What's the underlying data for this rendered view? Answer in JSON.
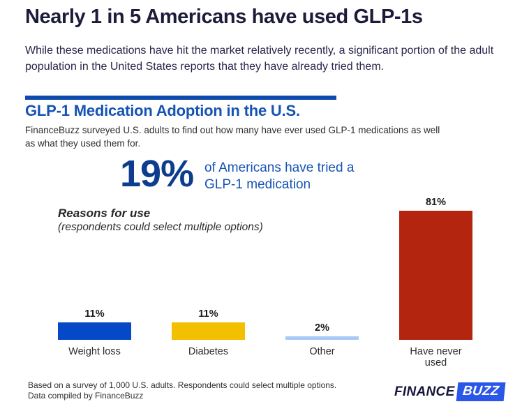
{
  "header": {
    "title": "Nearly 1 in 5 Americans have used GLP-1s",
    "subtitle_line1": "While these medications have hit the market relatively recently, a significant portion of the adult",
    "subtitle_line2": "population in the United States reports that they have already tried them."
  },
  "chart": {
    "title": "GLP-1 Medication Adoption in the U.S.",
    "description_line1": "FinanceBuzz surveyed U.S. adults to find out how many have ever used GLP-1 medications as well",
    "description_line2": "as what they used them for."
  },
  "stat": {
    "value": "19%",
    "description_line1": "of Americans have tried a",
    "description_line2": "GLP-1 medication"
  },
  "reasons": {
    "title": "Reasons for use",
    "note": "(respondents could select multiple options)"
  },
  "chart_data": {
    "type": "bar",
    "title": "GLP-1 Medication Adoption in the U.S.",
    "categories": [
      "Weight loss",
      "Diabetes",
      "Other",
      "Have never used"
    ],
    "values": [
      11,
      11,
      2,
      81
    ],
    "value_labels": [
      "11%",
      "11%",
      "2%",
      "81%"
    ],
    "bar_colors": [
      "#0549c8",
      "#f3c000",
      "#a8caf5",
      "#b3250e"
    ],
    "xlabel": "",
    "ylabel": "",
    "ylim": [
      0,
      81
    ],
    "grid": false,
    "legend": false,
    "orientation": "vertical"
  },
  "footer": {
    "note_line1": "Based on a survey of 1,000 U.S. adults. Respondents could select multiple options.",
    "note_line2": "Data compiled by FinanceBuzz",
    "logo_finance": "FINANCE",
    "logo_buzz": "BUZZ"
  },
  "colors": {
    "headline_navy": "#1c1c3a",
    "accent_blue": "#1553b4",
    "rule_blue": "#0d4aad",
    "stat_blue": "#0e3d8d",
    "body_text": "#2d2d2d",
    "logo_navy": "#16163c",
    "logo_blue": "#2b57e8"
  }
}
